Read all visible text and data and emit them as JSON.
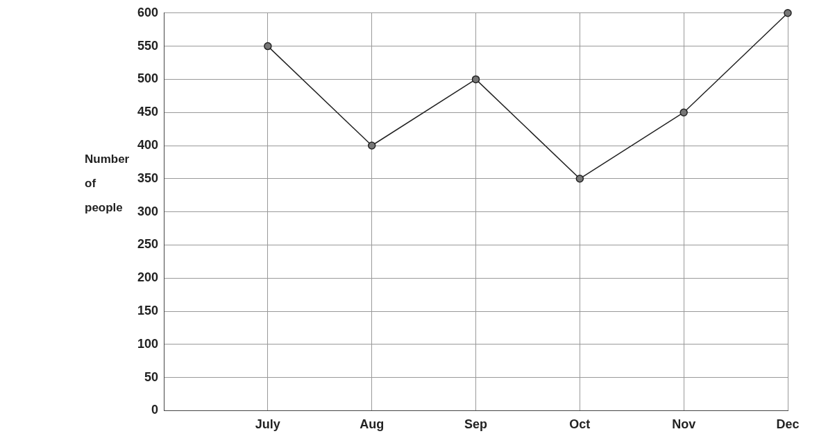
{
  "chart_data": {
    "type": "line",
    "ylabel": "Number of people",
    "categories": [
      null,
      "July",
      "Aug",
      "Sep",
      "Oct",
      "Nov",
      "Dec"
    ],
    "series": [
      {
        "color": "#222222",
        "values": [
          null,
          550,
          400,
          500,
          350,
          450,
          600
        ]
      }
    ],
    "ylim": [
      0,
      600
    ],
    "yticks": [
      0,
      50,
      100,
      150,
      200,
      250,
      300,
      350,
      400,
      450,
      500,
      550,
      600
    ],
    "grid": true,
    "legend": false,
    "marker": "circle",
    "line_style": "solid"
  }
}
